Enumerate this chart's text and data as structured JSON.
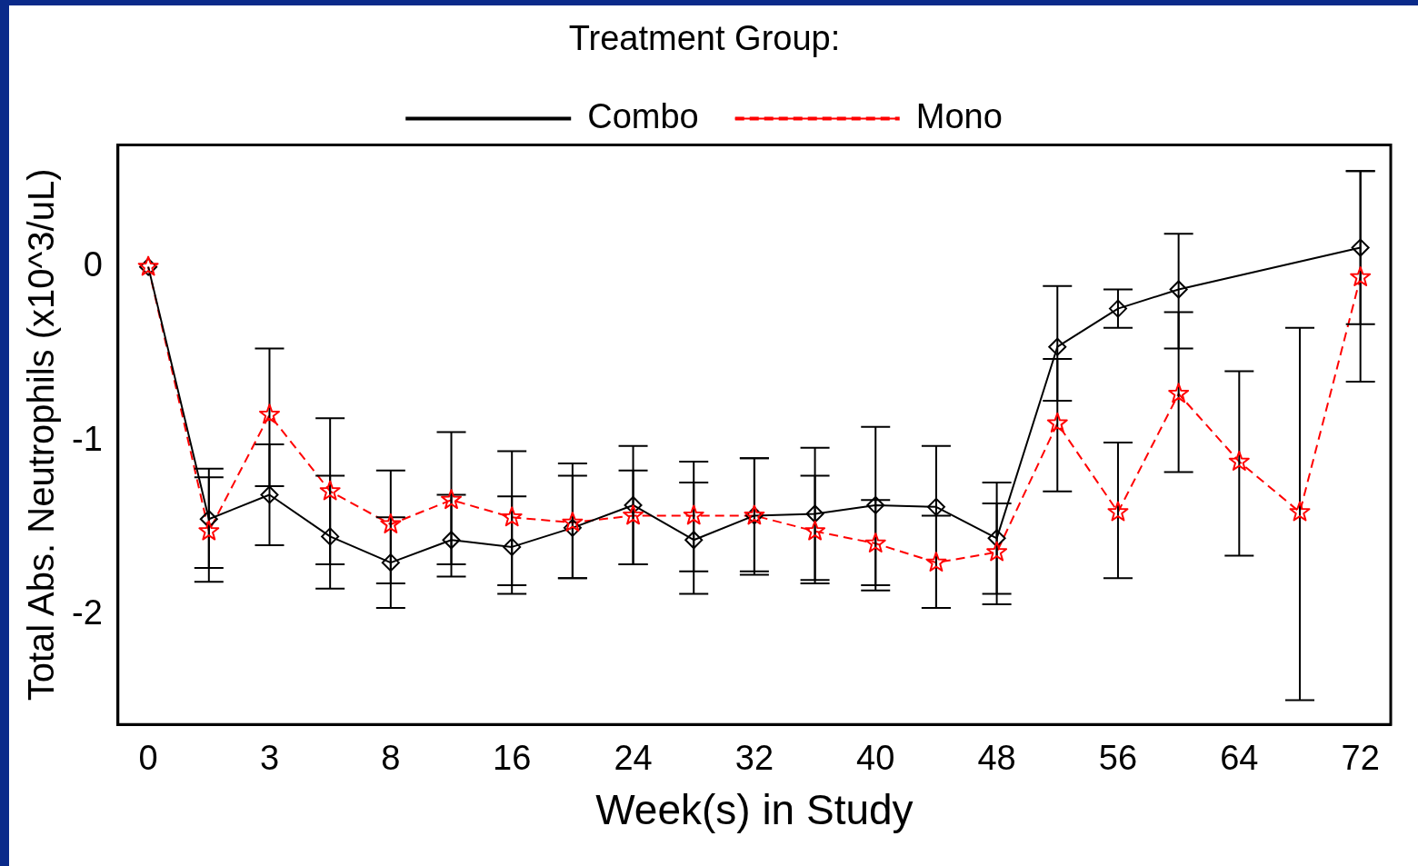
{
  "chart_data": {
    "type": "line",
    "xlabel": "Week(s) in Study",
    "ylabel": "Total Abs. Neutrophils (x10^3/uL)",
    "legend_title": "Treatment Group:",
    "legend": "top",
    "grid": false,
    "categories": [
      "0",
      null,
      "3",
      null,
      "8",
      null,
      "16",
      null,
      "24",
      null,
      "32",
      null,
      "40",
      null,
      "48",
      null,
      "56",
      null,
      "64",
      null,
      "72"
    ],
    "ylim": [
      -2.63,
      0.7
    ],
    "yticks": [
      -2,
      -1,
      0
    ],
    "series": [
      {
        "name": "Combo",
        "color": "#000000",
        "marker": "diamond",
        "line_style": "solid",
        "values": [
          0,
          -1.45,
          -1.31,
          -1.55,
          -1.7,
          -1.57,
          -1.61,
          -1.5,
          -1.37,
          -1.57,
          -1.43,
          -1.42,
          -1.37,
          -1.38,
          -1.56,
          -0.46,
          -0.24,
          -0.13,
          null,
          null,
          0.11
        ],
        "errors": [
          null,
          [
            -1.81,
            -1.16
          ],
          [
            -1.6,
            -1.02
          ],
          [
            -1.85,
            -1.2
          ],
          [
            -1.96,
            -1.44
          ],
          [
            -1.78,
            -1.31
          ],
          [
            -1.88,
            -1.32
          ],
          [
            -1.79,
            -1.2
          ],
          [
            -1.71,
            -1.03
          ],
          [
            -1.88,
            -1.24
          ],
          [
            -1.77,
            -1.1
          ],
          [
            -1.8,
            -1.04
          ],
          [
            -1.83,
            -0.92
          ],
          [
            -1.96,
            -1.03
          ],
          [
            -1.94,
            -1.24
          ],
          [
            -0.77,
            -0.11
          ],
          [
            -0.35,
            -0.13
          ],
          [
            -0.47,
            0.19
          ],
          null,
          null,
          [
            -0.33,
            0.55
          ]
        ]
      },
      {
        "name": "Mono",
        "color": "#ff0000",
        "marker": "star",
        "line_style": "dashed",
        "values": [
          0,
          -1.52,
          -0.85,
          -1.29,
          -1.48,
          -1.34,
          -1.44,
          -1.47,
          -1.43,
          -1.43,
          -1.43,
          -1.52,
          -1.59,
          -1.7,
          -1.64,
          -0.9,
          -1.41,
          -0.73,
          -1.12,
          -1.41,
          -0.06
        ],
        "errors": [
          null,
          [
            -1.73,
            -1.21
          ],
          [
            -1.26,
            -0.47
          ],
          [
            -1.71,
            -0.87
          ],
          [
            -1.82,
            -1.17
          ],
          [
            -1.71,
            -0.95
          ],
          [
            -1.83,
            -1.06
          ],
          [
            -1.79,
            -1.13
          ],
          [
            -1.71,
            -1.17
          ],
          [
            -1.75,
            -1.12
          ],
          [
            -1.75,
            -1.1
          ],
          [
            -1.82,
            -1.2
          ],
          [
            -1.86,
            -1.34
          ],
          [
            -1.96,
            -1.43
          ],
          [
            -1.88,
            -1.36
          ],
          [
            -1.29,
            -0.53
          ],
          [
            -1.79,
            -1.01
          ],
          [
            -1.18,
            -0.26
          ],
          [
            -1.66,
            -0.6
          ],
          [
            -2.49,
            -0.35
          ],
          [
            -0.66,
            0.55
          ]
        ]
      }
    ]
  }
}
